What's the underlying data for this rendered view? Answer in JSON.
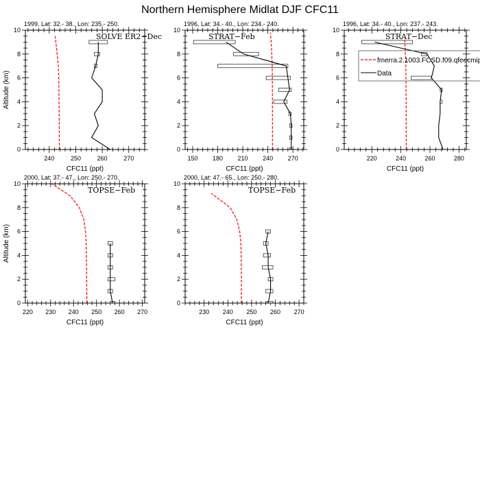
{
  "chart_data": {
    "type": "line",
    "title": "Northern Hemisphere Midlat DJF CFC11",
    "legend": {
      "placement": "panel-3-center",
      "entries": [
        {
          "name": "fmerra.2.1003.FCSD.f09.qfedcmip",
          "color": "#ff0000",
          "style": "dashed"
        },
        {
          "name": "Data",
          "color": "#000000",
          "style": "solid"
        }
      ]
    },
    "panels": [
      {
        "subtitle": "1999, Lat: 32.- 38., Lon: 235.- 250.",
        "campaign": "SOLVE ER2−Dec",
        "xlabel": "CFC11 (ppt)",
        "ylabel": "Altitude (km)",
        "xlim": [
          231,
          276
        ],
        "ylim": [
          0,
          10
        ],
        "xticks": [
          240,
          250,
          260,
          270
        ],
        "yticks": [
          0,
          2,
          4,
          6,
          8,
          10
        ],
        "model": {
          "alt": [
            0,
            2,
            4,
            6,
            7,
            8,
            9,
            9.5
          ],
          "value": [
            243.8,
            243.8,
            243.7,
            243.6,
            243.4,
            243.0,
            242.5,
            242.2
          ]
        },
        "data": {
          "alt": [
            0,
            1,
            2,
            3,
            4,
            5,
            6,
            7,
            8,
            9
          ],
          "value": [
            263,
            256,
            258.5,
            257,
            260,
            260,
            256,
            257.5,
            258.5,
            258.5
          ]
        },
        "errors": [
          {
            "alt": 9,
            "min": 255,
            "max": 262
          },
          {
            "alt": 8,
            "min": 257,
            "max": 259
          },
          {
            "alt": 7,
            "min": 257,
            "max": 258
          }
        ]
      },
      {
        "subtitle": "1996, Lat: 34.- 40., Lon: 234.- 240.",
        "campaign": "STRAT−Feb",
        "xlabel": "CFC11 (ppt)",
        "ylabel": "",
        "xlim": [
          141,
          283
        ],
        "ylim": [
          0,
          10
        ],
        "xticks": [
          150,
          180,
          210,
          240,
          270
        ],
        "yticks": [
          0,
          2,
          4,
          6,
          8,
          10
        ],
        "model": {
          "alt": [
            0,
            3,
            6,
            7,
            8,
            9,
            9.8
          ],
          "value": [
            245.5,
            245.5,
            245.4,
            245.2,
            244.7,
            244,
            243
          ]
        },
        "data": {
          "alt": [
            0,
            1,
            2,
            3,
            4,
            5,
            6,
            7,
            8,
            9
          ],
          "value": [
            268,
            268,
            268,
            267,
            259,
            266,
            264,
            262,
            211,
            190
          ]
        },
        "errors": [
          {
            "alt": 9,
            "min": 151,
            "max": 201
          },
          {
            "alt": 8,
            "min": 199,
            "max": 229
          },
          {
            "alt": 7,
            "min": 180,
            "max": 264
          },
          {
            "alt": 6,
            "min": 238,
            "max": 267
          },
          {
            "alt": 5,
            "min": 253,
            "max": 268
          },
          {
            "alt": 4,
            "min": 247,
            "max": 263
          },
          {
            "alt": 3,
            "min": 265,
            "max": 268
          },
          {
            "alt": 2,
            "min": 266,
            "max": 269
          },
          {
            "alt": 1,
            "min": 266,
            "max": 269
          },
          {
            "alt": 0,
            "min": 266,
            "max": 268
          }
        ]
      },
      {
        "subtitle": "1996, Lat: 34.- 40., Lon: 237.- 243.",
        "campaign": "STRAT−Dec",
        "xlabel": "CFC11 (ppt)",
        "ylabel": "",
        "xlim": [
          201,
          285
        ],
        "ylim": [
          0,
          10
        ],
        "xticks": [
          220,
          240,
          260,
          280
        ],
        "yticks": [
          0,
          2,
          4,
          6,
          8,
          10
        ],
        "model": {
          "alt": [
            0,
            4,
            7,
            8,
            9,
            9.3
          ],
          "value": [
            243.7,
            243.6,
            243.4,
            243.1,
            242.7,
            242.5
          ]
        },
        "data": {
          "alt": [
            0,
            1,
            2,
            3,
            4,
            5,
            6,
            7,
            8,
            9
          ],
          "value": [
            269,
            266,
            266,
            267,
            267,
            268,
            261,
            263,
            258,
            222
          ]
        },
        "errors": [
          {
            "alt": 9,
            "min": 213,
            "max": 248
          },
          {
            "alt": 8,
            "min": 254,
            "max": 258
          },
          {
            "alt": 6,
            "min": 247,
            "max": 261
          },
          {
            "alt": 5,
            "min": 267,
            "max": 268
          },
          {
            "alt": 4,
            "min": 267,
            "max": 268
          }
        ]
      },
      {
        "subtitle": "2000, Lat: 37.- 47., Lon: 250.- 270.",
        "campaign": "TOPSE−Feb",
        "xlabel": "CFC11 (ppt)",
        "ylabel": "Altitude (km)",
        "xlim": [
          219,
          271
        ],
        "ylim": [
          0,
          10
        ],
        "xticks": [
          220,
          230,
          240,
          250,
          260,
          270
        ],
        "yticks": [
          0,
          2,
          4,
          6,
          8,
          10
        ],
        "model": {
          "alt": [
            0,
            2,
            4,
            5,
            6,
            7,
            8,
            9,
            10
          ],
          "value": [
            245.8,
            245.7,
            245.6,
            245.5,
            245.2,
            244.5,
            242.5,
            238.5,
            230.5
          ]
        },
        "data": {
          "alt": [
            0,
            1,
            2,
            3,
            4,
            5
          ],
          "value": [
            257,
            256,
            256,
            256,
            256,
            256
          ]
        },
        "errors": [
          {
            "alt": 5,
            "min": 255,
            "max": 257
          },
          {
            "alt": 4,
            "min": 255,
            "max": 257
          },
          {
            "alt": 3,
            "min": 255,
            "max": 257
          },
          {
            "alt": 2,
            "min": 255,
            "max": 258
          },
          {
            "alt": 1,
            "min": 255,
            "max": 257
          },
          {
            "alt": 0,
            "min": 256,
            "max": 258
          }
        ]
      },
      {
        "subtitle": "2000, Lat: 47.- 65., Lon: 250.- 280.",
        "campaign": "TOPSE−Feb",
        "xlabel": "CFC11 (ppt)",
        "ylabel": "",
        "xlim": [
          222,
          272
        ],
        "ylim": [
          0,
          10
        ],
        "xticks": [
          230,
          240,
          250,
          260,
          270
        ],
        "yticks": [
          0,
          2,
          4,
          6,
          8,
          10
        ],
        "model": {
          "alt": [
            0,
            2,
            4,
            5,
            6,
            7,
            8,
            9.2
          ],
          "value": [
            245.7,
            245.7,
            245.6,
            245.5,
            245,
            243.8,
            241,
            233
          ]
        },
        "data": {
          "alt": [
            0,
            1,
            2,
            3,
            4,
            5,
            6
          ],
          "value": [
            257,
            258,
            258,
            257,
            257,
            256,
            257
          ]
        },
        "errors": [
          {
            "alt": 6,
            "min": 256,
            "max": 258
          },
          {
            "alt": 5,
            "min": 255,
            "max": 257
          },
          {
            "alt": 4,
            "min": 255,
            "max": 258
          },
          {
            "alt": 3,
            "min": 254.5,
            "max": 259
          },
          {
            "alt": 2,
            "min": 257,
            "max": 259
          },
          {
            "alt": 1,
            "min": 256,
            "max": 259
          },
          {
            "alt": 0,
            "min": 256.5,
            "max": 259
          }
        ]
      }
    ]
  }
}
